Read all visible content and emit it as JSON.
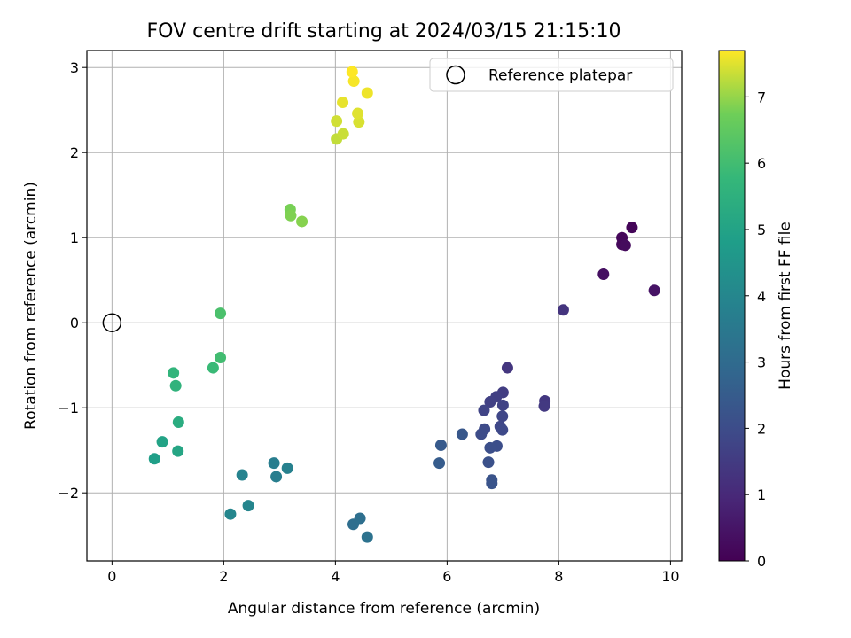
{
  "chart_data": {
    "type": "scatter",
    "title": "FOV centre drift starting at 2024/03/15 21:15:10",
    "xlabel": "Angular distance from reference (arcmin)",
    "ylabel": "Rotation from reference (arcmin)",
    "xlim": [
      -0.45,
      10.2
    ],
    "ylim": [
      -2.8,
      3.2
    ],
    "xticks": [
      0,
      2,
      4,
      6,
      8,
      10
    ],
    "yticks": [
      -2,
      -1,
      0,
      1,
      2,
      3
    ],
    "grid": true,
    "legend": {
      "placement": "top-right",
      "entries": [
        "Reference platepar"
      ]
    },
    "reference_point": {
      "x": 0,
      "y": 0
    },
    "colorbar": {
      "label": "Hours from first FF file",
      "range": [
        0,
        7.7
      ],
      "ticks": [
        0,
        1,
        2,
        3,
        4,
        5,
        6,
        7
      ],
      "colormap": "viridis"
    },
    "points": [
      {
        "x": 9.31,
        "y": 1.12,
        "h": 0.1
      },
      {
        "x": 9.13,
        "y": 1.0,
        "h": 0.15
      },
      {
        "x": 9.13,
        "y": 0.92,
        "h": 0.2
      },
      {
        "x": 9.19,
        "y": 0.91,
        "h": 0.25
      },
      {
        "x": 8.8,
        "y": 0.57,
        "h": 0.35
      },
      {
        "x": 9.71,
        "y": 0.38,
        "h": 0.45
      },
      {
        "x": 8.08,
        "y": 0.15,
        "h": 1.3
      },
      {
        "x": 7.08,
        "y": -0.53,
        "h": 1.35
      },
      {
        "x": 7.75,
        "y": -0.92,
        "h": 1.4
      },
      {
        "x": 7.74,
        "y": -0.98,
        "h": 1.45
      },
      {
        "x": 7.0,
        "y": -0.82,
        "h": 1.55
      },
      {
        "x": 6.88,
        "y": -0.87,
        "h": 1.6
      },
      {
        "x": 6.77,
        "y": -0.93,
        "h": 1.65
      },
      {
        "x": 7.0,
        "y": -0.97,
        "h": 1.7
      },
      {
        "x": 6.66,
        "y": -1.03,
        "h": 1.75
      },
      {
        "x": 6.99,
        "y": -1.1,
        "h": 1.8
      },
      {
        "x": 6.95,
        "y": -1.22,
        "h": 1.85
      },
      {
        "x": 6.99,
        "y": -1.26,
        "h": 1.9
      },
      {
        "x": 6.67,
        "y": -1.25,
        "h": 1.95
      },
      {
        "x": 6.61,
        "y": -1.31,
        "h": 2.0
      },
      {
        "x": 6.89,
        "y": -1.45,
        "h": 2.05
      },
      {
        "x": 6.77,
        "y": -1.47,
        "h": 2.1
      },
      {
        "x": 6.74,
        "y": -1.64,
        "h": 2.15
      },
      {
        "x": 6.8,
        "y": -1.85,
        "h": 2.2
      },
      {
        "x": 6.8,
        "y": -1.89,
        "h": 2.25
      },
      {
        "x": 6.27,
        "y": -1.31,
        "h": 2.35
      },
      {
        "x": 5.89,
        "y": -1.44,
        "h": 2.45
      },
      {
        "x": 5.86,
        "y": -1.65,
        "h": 2.5
      },
      {
        "x": 4.32,
        "y": -2.37,
        "h": 3.1
      },
      {
        "x": 4.44,
        "y": -2.3,
        "h": 3.15
      },
      {
        "x": 4.57,
        "y": -2.52,
        "h": 3.25
      },
      {
        "x": 2.9,
        "y": -1.65,
        "h": 3.65
      },
      {
        "x": 2.94,
        "y": -1.81,
        "h": 3.7
      },
      {
        "x": 3.14,
        "y": -1.71,
        "h": 3.8
      },
      {
        "x": 2.33,
        "y": -1.79,
        "h": 3.9
      },
      {
        "x": 2.44,
        "y": -2.15,
        "h": 3.95
      },
      {
        "x": 2.12,
        "y": -2.25,
        "h": 4.0
      },
      {
        "x": 0.76,
        "y": -1.6,
        "h": 4.85
      },
      {
        "x": 0.9,
        "y": -1.4,
        "h": 5.0
      },
      {
        "x": 1.18,
        "y": -1.51,
        "h": 5.1
      },
      {
        "x": 1.19,
        "y": -1.17,
        "h": 5.35
      },
      {
        "x": 1.14,
        "y": -0.74,
        "h": 5.6
      },
      {
        "x": 1.1,
        "y": -0.59,
        "h": 5.65
      },
      {
        "x": 1.81,
        "y": -0.53,
        "h": 5.85
      },
      {
        "x": 1.94,
        "y": -0.41,
        "h": 6.0
      },
      {
        "x": 1.94,
        "y": 0.11,
        "h": 6.15
      },
      {
        "x": 3.19,
        "y": 1.33,
        "h": 6.8
      },
      {
        "x": 3.2,
        "y": 1.26,
        "h": 6.85
      },
      {
        "x": 3.4,
        "y": 1.19,
        "h": 6.9
      },
      {
        "x": 4.02,
        "y": 2.16,
        "h": 7.3
      },
      {
        "x": 4.14,
        "y": 2.22,
        "h": 7.35
      },
      {
        "x": 4.02,
        "y": 2.37,
        "h": 7.4
      },
      {
        "x": 4.42,
        "y": 2.36,
        "h": 7.45
      },
      {
        "x": 4.4,
        "y": 2.46,
        "h": 7.5
      },
      {
        "x": 4.13,
        "y": 2.59,
        "h": 7.55
      },
      {
        "x": 4.57,
        "y": 2.7,
        "h": 7.6
      },
      {
        "x": 4.33,
        "y": 2.84,
        "h": 7.65
      },
      {
        "x": 4.3,
        "y": 2.95,
        "h": 7.7
      }
    ]
  }
}
